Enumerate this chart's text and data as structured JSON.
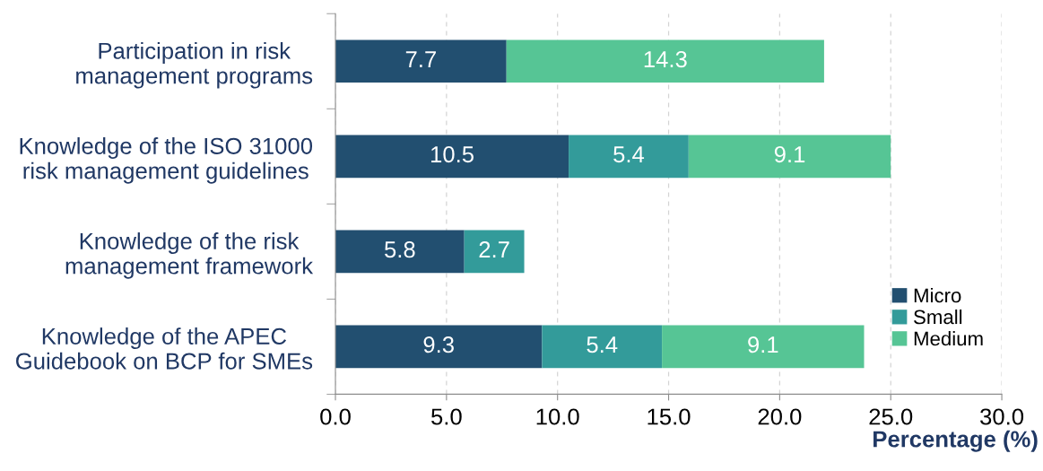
{
  "chart_data": {
    "type": "bar",
    "orientation": "horizontal",
    "stacked": true,
    "categories": [
      "Participation in risk\nmanagement programs",
      "Knowledge of the ISO 31000\nrisk management guidelines",
      "Knowledge of the risk\nmanagement framework",
      "Knowledge of the APEC\nGuidebook on BCP for SMEs"
    ],
    "series": [
      {
        "name": "Micro",
        "color": "#224f70",
        "values": [
          7.7,
          10.5,
          5.8,
          9.3
        ]
      },
      {
        "name": "Small",
        "color": "#339b9a",
        "values": [
          null,
          5.4,
          2.7,
          5.4
        ]
      },
      {
        "name": "Medium",
        "color": "#56c595",
        "values": [
          14.3,
          9.1,
          null,
          9.1
        ]
      }
    ],
    "xlabel": "Percentage (%)",
    "xlim": [
      0,
      30
    ],
    "xticks": [
      {
        "value": 0,
        "label": "0.0"
      },
      {
        "value": 5,
        "label": "5.0"
      },
      {
        "value": 10,
        "label": "10.0"
      },
      {
        "value": 15,
        "label": "15.0"
      },
      {
        "value": 20,
        "label": "20.0"
      },
      {
        "value": 25,
        "label": "25.0"
      },
      {
        "value": 30,
        "label": "30.0"
      }
    ],
    "grid": "x",
    "legend": "bottom right",
    "data_labels": true
  }
}
